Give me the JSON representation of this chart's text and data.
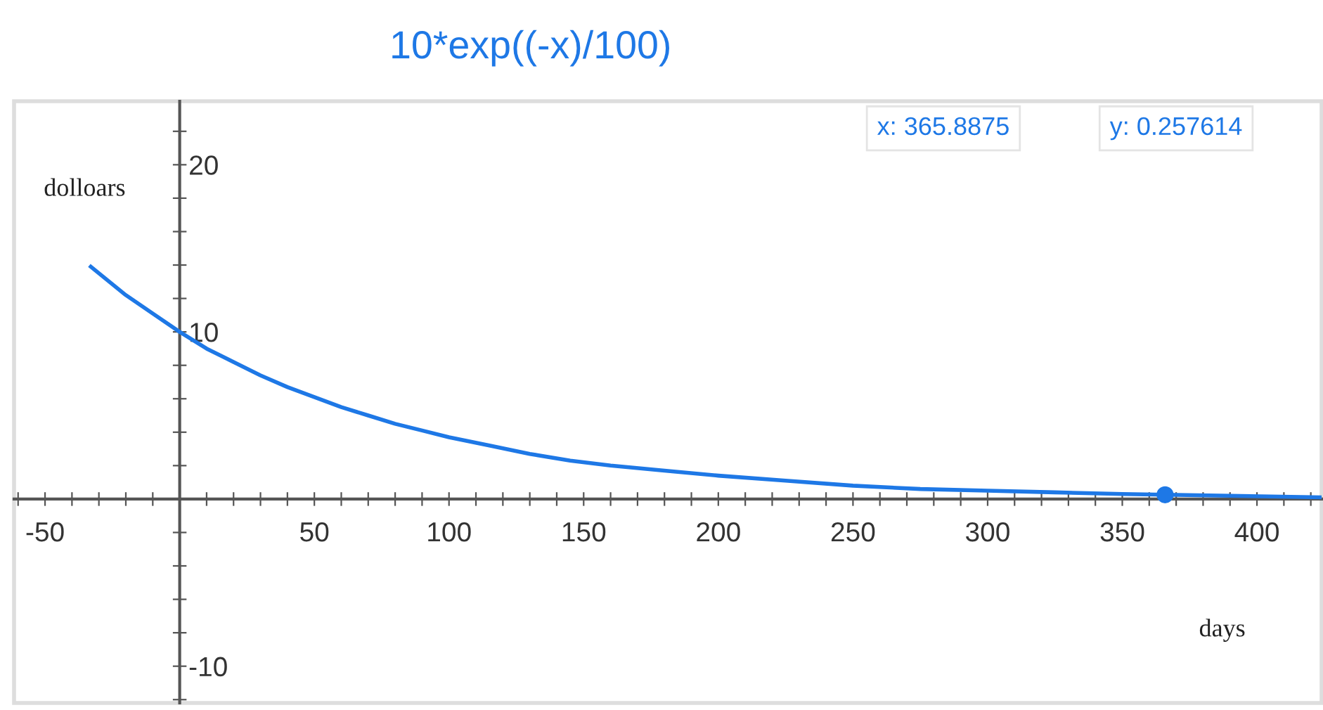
{
  "chart_data": {
    "type": "line",
    "title": "10*exp((-x)/100)",
    "xlabel": "days",
    "ylabel": "dolloars",
    "annotations": [
      "x: 365.8875",
      "y: 0.257614"
    ],
    "xlim": [
      -61.5,
      424
    ],
    "ylim": [
      -12.2,
      23.8
    ],
    "xticks": [
      {
        "value": -60,
        "label": null
      },
      {
        "value": -50,
        "label": "-50"
      },
      {
        "value": -40,
        "label": null
      },
      {
        "value": -30,
        "label": null
      },
      {
        "value": -20,
        "label": null
      },
      {
        "value": -10,
        "label": null
      },
      {
        "value": 0,
        "label": null
      },
      {
        "value": 10,
        "label": null
      },
      {
        "value": 20,
        "label": null
      },
      {
        "value": 30,
        "label": null
      },
      {
        "value": 40,
        "label": null
      },
      50,
      {
        "value": 60,
        "label": null
      },
      {
        "value": 70,
        "label": null
      },
      {
        "value": 80,
        "label": null
      },
      {
        "value": 90,
        "label": null
      },
      100,
      {
        "value": 110,
        "label": null
      },
      {
        "value": 120,
        "label": null
      },
      {
        "value": 130,
        "label": null
      },
      {
        "value": 140,
        "label": null
      },
      150,
      {
        "value": 160,
        "label": null
      },
      {
        "value": 170,
        "label": null
      },
      {
        "value": 180,
        "label": null
      },
      {
        "value": 190,
        "label": null
      },
      200,
      {
        "value": 210,
        "label": null
      },
      {
        "value": 220,
        "label": null
      },
      {
        "value": 230,
        "label": null
      },
      {
        "value": 240,
        "label": null
      },
      250,
      {
        "value": 260,
        "label": null
      },
      {
        "value": 270,
        "label": null
      },
      {
        "value": 280,
        "label": null
      },
      {
        "value": 290,
        "label": null
      },
      300,
      {
        "value": 310,
        "label": null
      },
      {
        "value": 320,
        "label": null
      },
      {
        "value": 330,
        "label": null
      },
      {
        "value": 340,
        "label": null
      },
      350,
      {
        "value": 360,
        "label": null
      },
      {
        "value": 370,
        "label": null
      },
      {
        "value": 380,
        "label": null
      },
      {
        "value": 390,
        "label": null
      },
      400,
      {
        "value": 410,
        "label": null
      },
      {
        "value": 420,
        "label": null
      }
    ],
    "yticks": [
      {
        "value": -12,
        "label": null
      },
      -10,
      {
        "value": -8,
        "label": null
      },
      {
        "value": -6,
        "label": null
      },
      {
        "value": -4,
        "label": null
      },
      {
        "value": -2,
        "label": null
      },
      {
        "value": 0,
        "label": null
      },
      {
        "value": 2,
        "label": null
      },
      {
        "value": 4,
        "label": null
      },
      {
        "value": 6,
        "label": null
      },
      {
        "value": 8,
        "label": null
      },
      10,
      {
        "value": 12,
        "label": null
      },
      {
        "value": 14,
        "label": null
      },
      {
        "value": 16,
        "label": null
      },
      {
        "value": 18,
        "label": null
      },
      20,
      {
        "value": 22,
        "label": null
      }
    ],
    "series": [
      {
        "color": "#1e78e6",
        "x": [
          -33,
          -20,
          -10,
          0,
          10,
          20,
          30,
          40,
          50,
          60,
          70,
          80,
          90,
          100,
          115,
          130,
          145,
          160,
          180,
          200,
          225,
          250,
          275,
          300,
          325,
          350,
          390,
          424
        ],
        "values": [
          13.9,
          12.2,
          11.1,
          10,
          9.0,
          8.2,
          7.4,
          6.7,
          6.1,
          5.5,
          5.0,
          4.5,
          4.1,
          3.7,
          3.2,
          2.7,
          2.3,
          2.0,
          1.7,
          1.4,
          1.1,
          0.8,
          0.6,
          0.5,
          0.4,
          0.3,
          0.2,
          0.1
        ]
      },
      {
        "type": "scatter",
        "color": "#1e78e6",
        "marker": "circle",
        "x": [
          365.8875
        ],
        "values": [
          0.257614
        ]
      }
    ]
  }
}
